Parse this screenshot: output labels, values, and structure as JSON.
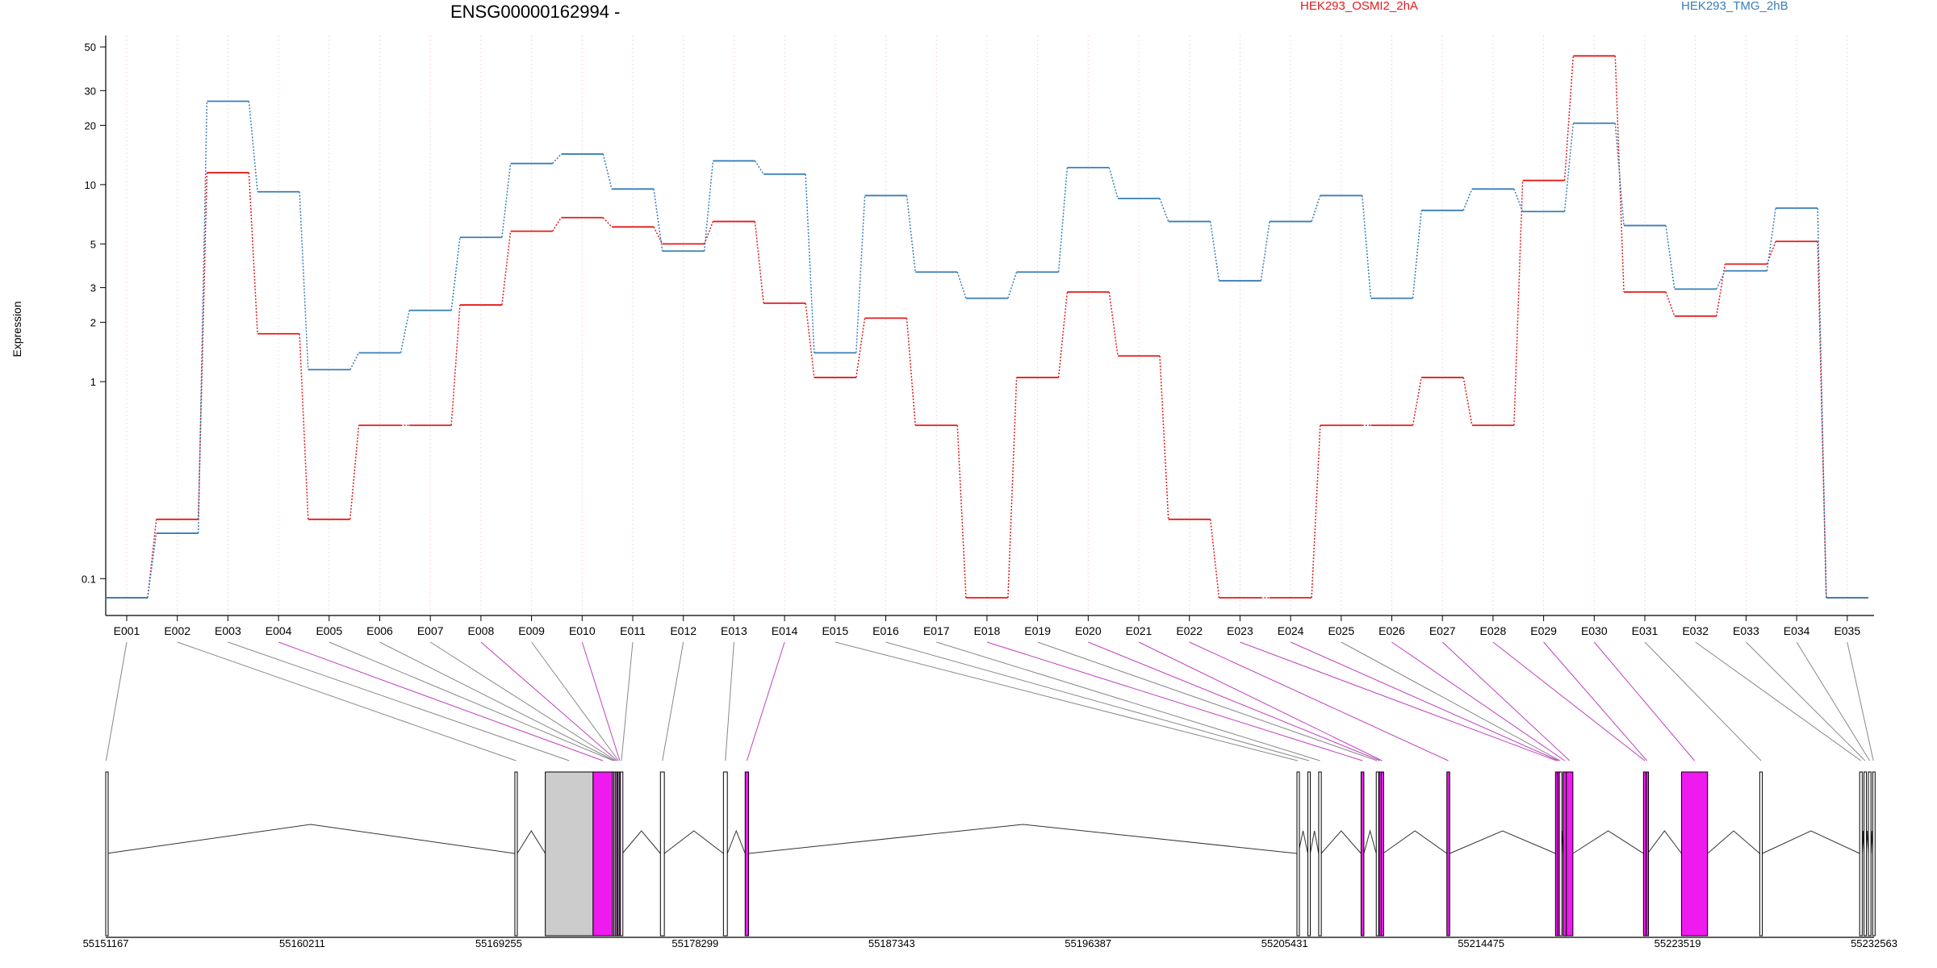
{
  "chart_data": {
    "type": "line",
    "title": "ENSG00000162994 -",
    "xlabel": "",
    "ylabel": "Expression",
    "y_scale": "log",
    "ylim": [
      0.08,
      52
    ],
    "y_ticks": [
      0.1,
      1,
      2,
      3,
      5,
      10,
      20,
      30,
      50
    ],
    "y_tick_labels": [
      "0.1",
      "1",
      "2",
      "3",
      "5",
      "10",
      "20",
      "30",
      "50"
    ],
    "grid": "vertical dotted lines at each exon",
    "legend_position": "top",
    "categories": [
      "E001",
      "E002",
      "E003",
      "E004",
      "E005",
      "E006",
      "E007",
      "E008",
      "E009",
      "E010",
      "E011",
      "E012",
      "E013",
      "E014",
      "E015",
      "E016",
      "E017",
      "E018",
      "E019",
      "E020",
      "E021",
      "E022",
      "E023",
      "E024",
      "E025",
      "E026",
      "E027",
      "E028",
      "E029",
      "E030",
      "E031",
      "E032",
      "E033",
      "E034",
      "E035"
    ],
    "series": [
      {
        "name": "HEK293_OSMI2_2hA",
        "color": "#e41a1c",
        "values": [
          0.08,
          0.2,
          11.5,
          1.75,
          0.2,
          0.6,
          0.6,
          2.45,
          5.8,
          6.8,
          6.1,
          5.0,
          6.5,
          2.5,
          1.05,
          2.1,
          0.6,
          0.08,
          1.05,
          2.85,
          1.35,
          0.2,
          0.08,
          0.08,
          0.6,
          0.6,
          1.05,
          0.6,
          10.5,
          45.0,
          2.85,
          2.15,
          3.95,
          5.15,
          0.08
        ]
      },
      {
        "name": "HEK293_TMG_2hB",
        "color": "#377eb8",
        "values": [
          0.08,
          0.17,
          26.5,
          9.2,
          1.15,
          1.4,
          2.3,
          5.4,
          12.8,
          14.3,
          9.5,
          4.6,
          13.2,
          11.3,
          1.4,
          8.8,
          3.6,
          2.65,
          3.6,
          12.2,
          8.5,
          6.5,
          3.25,
          6.5,
          8.8,
          2.65,
          7.4,
          9.5,
          7.3,
          20.5,
          6.2,
          2.95,
          3.65,
          7.6,
          0.08
        ]
      }
    ],
    "gene_model": {
      "coordinate_range": [
        55151167,
        55232563
      ],
      "coordinate_labels": [
        "55151167",
        "55160211",
        "55169255",
        "55178299",
        "55187343",
        "55196387",
        "55205431",
        "55214475",
        "55223519",
        "55232563"
      ],
      "coordinate_ticks": [
        55151167,
        55160211,
        55169255,
        55178299,
        55187343,
        55196387,
        55205431,
        55214475,
        55223519,
        55232563
      ],
      "highlight_color": "#ee1aee",
      "default_color": "#ffffff",
      "utr_color": "#cccccc",
      "exons": [
        {
          "id": "E001",
          "start": 55151167,
          "end": 55151200,
          "highlight": false
        },
        {
          "id": "E002",
          "start": 55170000,
          "end": 55170110,
          "highlight": false
        },
        {
          "id": "E003",
          "start": 55171400,
          "end": 55173600,
          "highlight": false,
          "utr": true
        },
        {
          "id": "E004",
          "start": 55173600,
          "end": 55174500,
          "highlight": true
        },
        {
          "id": "E005",
          "start": 55174500,
          "end": 55174560,
          "highlight": false
        },
        {
          "id": "E006",
          "start": 55174560,
          "end": 55174620,
          "highlight": false
        },
        {
          "id": "E007",
          "start": 55174620,
          "end": 55174680,
          "highlight": false
        },
        {
          "id": "E008",
          "start": 55174680,
          "end": 55174740,
          "highlight": true
        },
        {
          "id": "E009",
          "start": 55174740,
          "end": 55174800,
          "highlight": false
        },
        {
          "id": "E010",
          "start": 55174800,
          "end": 55174860,
          "highlight": true
        },
        {
          "id": "E011",
          "start": 55174860,
          "end": 55174950,
          "highlight": false
        },
        {
          "id": "E012",
          "start": 55176700,
          "end": 55176880,
          "highlight": false
        },
        {
          "id": "E013",
          "start": 55179600,
          "end": 55179780,
          "highlight": false
        },
        {
          "id": "E014",
          "start": 55180600,
          "end": 55180760,
          "highlight": true
        },
        {
          "id": "E015",
          "start": 55206000,
          "end": 55206060,
          "highlight": false
        },
        {
          "id": "E016",
          "start": 55206500,
          "end": 55206610,
          "highlight": false
        },
        {
          "id": "E017",
          "start": 55207000,
          "end": 55207120,
          "highlight": false
        },
        {
          "id": "E018",
          "start": 55208950,
          "end": 55209080,
          "highlight": true
        },
        {
          "id": "E019",
          "start": 55209650,
          "end": 55209720,
          "highlight": false
        },
        {
          "id": "E020",
          "start": 55209780,
          "end": 55209870,
          "highlight": true
        },
        {
          "id": "E021",
          "start": 55209880,
          "end": 55209960,
          "highlight": true
        },
        {
          "id": "E022",
          "start": 55212900,
          "end": 55213030,
          "highlight": true
        },
        {
          "id": "E023",
          "start": 55217900,
          "end": 55218000,
          "highlight": true
        },
        {
          "id": "E024",
          "start": 55218000,
          "end": 55218080,
          "highlight": true
        },
        {
          "id": "E025",
          "start": 55218080,
          "end": 55218150,
          "highlight": false
        },
        {
          "id": "E026",
          "start": 55218250,
          "end": 55218400,
          "highlight": true
        },
        {
          "id": "E027",
          "start": 55218400,
          "end": 55218700,
          "highlight": true
        },
        {
          "id": "E028",
          "start": 55221950,
          "end": 55222070,
          "highlight": true
        },
        {
          "id": "E029",
          "start": 55222070,
          "end": 55222140,
          "highlight": true
        },
        {
          "id": "E030",
          "start": 55223700,
          "end": 55224900,
          "highlight": true
        },
        {
          "id": "E031",
          "start": 55227300,
          "end": 55227420,
          "highlight": false
        },
        {
          "id": "E032",
          "start": 55231900,
          "end": 55232020,
          "highlight": false
        },
        {
          "id": "E033",
          "start": 55232100,
          "end": 55232200,
          "highlight": false
        },
        {
          "id": "E034",
          "start": 55232300,
          "end": 55232420,
          "highlight": false
        },
        {
          "id": "E035",
          "start": 55232500,
          "end": 55232563,
          "highlight": false
        }
      ]
    }
  }
}
